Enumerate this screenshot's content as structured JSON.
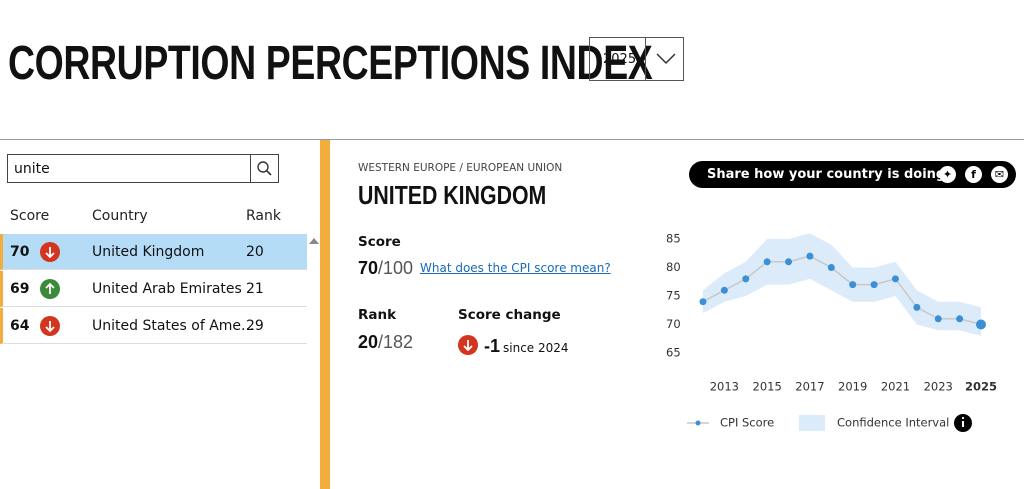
{
  "header": {
    "title": "CORRUPTION PERCEPTIONS INDEX",
    "year": "2025"
  },
  "search": {
    "query": "unite"
  },
  "table": {
    "headers": [
      "Score",
      "Country",
      "Rank"
    ],
    "rows": [
      {
        "score": 70,
        "country": "United Kingdom",
        "rank": 20,
        "trend": "down",
        "selected": true
      },
      {
        "score": 69,
        "country": "United Arab Emirates",
        "rank": 21,
        "trend": "up",
        "selected": false
      },
      {
        "score": 64,
        "country": "United States of Ame...",
        "rank": 29,
        "trend": "down",
        "selected": false
      }
    ]
  },
  "detail": {
    "region": "WESTERN EUROPE / EUROPEAN UNION",
    "country": "UNITED KINGDOM",
    "score": {
      "label": "Score",
      "value": 70,
      "out_of": "/100"
    },
    "score_link": "What does the CPI score mean?",
    "rank": {
      "label": "Rank",
      "value": 20,
      "out_of": "/182"
    },
    "change": {
      "label": "Score change",
      "value": -1,
      "since": "since 2024"
    },
    "share": "Share how your country is doing"
  },
  "chart_data": {
    "type": "line",
    "x": [
      2012,
      2013,
      2014,
      2015,
      2016,
      2017,
      2018,
      2019,
      2020,
      2021,
      2022,
      2023,
      2024,
      2025
    ],
    "series": [
      {
        "name": "CPI Score",
        "color": "#3a8fd6",
        "values": [
          74,
          76,
          78,
          81,
          81,
          82,
          80,
          77,
          77,
          78,
          73,
          71,
          71,
          70
        ]
      },
      {
        "name": "Confidence Interval",
        "color": "#dcebf9",
        "lower": [
          72,
          74,
          75,
          77,
          77,
          78,
          76,
          74,
          74,
          75,
          70,
          69,
          69,
          68
        ],
        "upper": [
          76,
          79,
          81,
          85,
          85,
          86,
          84,
          80,
          80,
          81,
          76,
          74,
          74,
          73
        ]
      }
    ],
    "xlim": [
      2012,
      2025
    ],
    "xticks": [
      2013,
      2015,
      2017,
      2019,
      2021,
      2023,
      2025
    ],
    "ylim": [
      65,
      85
    ],
    "yticks": [
      65,
      70,
      75,
      80,
      85
    ]
  }
}
